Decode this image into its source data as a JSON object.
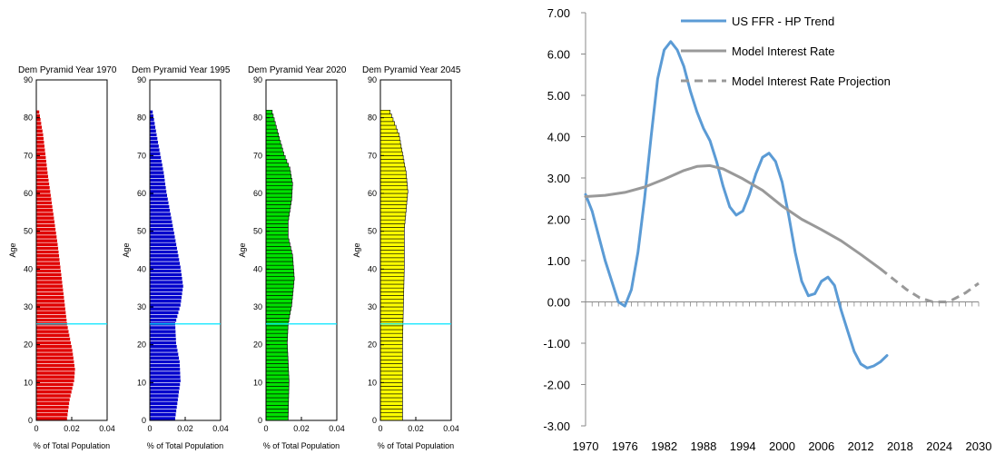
{
  "chart_data": [
    {
      "type": "bar",
      "orientation": "horizontal",
      "title": "Dem Pyramid Year 1970",
      "xlabel": "% of Total Population",
      "ylabel": "Age",
      "xlim": [
        0,
        0.04
      ],
      "ylim": [
        0,
        90
      ],
      "xticks": [
        "0",
        "0.02",
        "0.04"
      ],
      "yticks": [
        "0",
        "10",
        "20",
        "30",
        "40",
        "50",
        "60",
        "70",
        "80",
        "90"
      ],
      "color": "#e00000",
      "edge": "#ffffff",
      "marker_age": 25.5,
      "marker_color": "#00e5ff",
      "ages": [
        0,
        81
      ],
      "profile": [
        [
          0,
          0.0175
        ],
        [
          5,
          0.019
        ],
        [
          10,
          0.0215
        ],
        [
          13,
          0.022
        ],
        [
          18,
          0.0205
        ],
        [
          25,
          0.0175
        ],
        [
          35,
          0.015
        ],
        [
          45,
          0.0125
        ],
        [
          55,
          0.0095
        ],
        [
          65,
          0.0065
        ],
        [
          75,
          0.004
        ],
        [
          81,
          0.0018
        ]
      ]
    },
    {
      "type": "bar",
      "orientation": "horizontal",
      "title": "Dem Pyramid Year 1995",
      "xlabel": "% of Total Population",
      "ylabel": "Age",
      "xlim": [
        0,
        0.04
      ],
      "ylim": [
        0,
        90
      ],
      "xticks": [
        "0",
        "0.02",
        "0.04"
      ],
      "yticks": [
        "0",
        "10",
        "20",
        "30",
        "40",
        "50",
        "60",
        "70",
        "80",
        "90"
      ],
      "color": "#0000cc",
      "edge": "#ffffff",
      "marker_age": 25.5,
      "marker_color": "#00e5ff",
      "ages": [
        0,
        81
      ],
      "profile": [
        [
          0,
          0.0145
        ],
        [
          5,
          0.016
        ],
        [
          10,
          0.0175
        ],
        [
          15,
          0.017
        ],
        [
          20,
          0.015
        ],
        [
          25,
          0.0145
        ],
        [
          30,
          0.0175
        ],
        [
          35,
          0.019
        ],
        [
          40,
          0.0175
        ],
        [
          45,
          0.0155
        ],
        [
          50,
          0.0135
        ],
        [
          55,
          0.0115
        ],
        [
          60,
          0.0095
        ],
        [
          65,
          0.008
        ],
        [
          70,
          0.006
        ],
        [
          75,
          0.004
        ],
        [
          81,
          0.0018
        ]
      ]
    },
    {
      "type": "bar",
      "orientation": "horizontal",
      "title": "Dem Pyramid Year 2020",
      "xlabel": "% of Total Population",
      "ylabel": "Age",
      "xlim": [
        0,
        0.04
      ],
      "ylim": [
        0,
        90
      ],
      "xticks": [
        "0",
        "0.02",
        "0.04"
      ],
      "yticks": [
        "0",
        "10",
        "20",
        "30",
        "40",
        "50",
        "60",
        "70",
        "80",
        "90"
      ],
      "color": "#00e000",
      "edge": "#000000",
      "marker_age": 25.5,
      "marker_color": "#00e5ff",
      "ages": [
        0,
        81
      ],
      "profile": [
        [
          0,
          0.0125
        ],
        [
          10,
          0.013
        ],
        [
          20,
          0.012
        ],
        [
          25,
          0.0125
        ],
        [
          30,
          0.0145
        ],
        [
          37,
          0.016
        ],
        [
          43,
          0.015
        ],
        [
          48,
          0.0125
        ],
        [
          52,
          0.0125
        ],
        [
          58,
          0.0145
        ],
        [
          62,
          0.015
        ],
        [
          66,
          0.0135
        ],
        [
          70,
          0.01
        ],
        [
          75,
          0.007
        ],
        [
          81,
          0.0035
        ]
      ]
    },
    {
      "type": "bar",
      "orientation": "horizontal",
      "title": "Dem Pyramid Year 2045",
      "xlabel": "% of Total Population",
      "ylabel": "Age",
      "xlim": [
        0,
        0.04
      ],
      "ylim": [
        0,
        90
      ],
      "xticks": [
        "0",
        "0.02",
        "0.04"
      ],
      "yticks": [
        "0",
        "10",
        "20",
        "30",
        "40",
        "50",
        "60",
        "70",
        "80",
        "90"
      ],
      "color": "#ffff00",
      "edge": "#000000",
      "marker_age": 25.5,
      "marker_color": "#00e5ff",
      "ages": [
        0,
        81
      ],
      "profile": [
        [
          0,
          0.0125
        ],
        [
          20,
          0.0125
        ],
        [
          30,
          0.013
        ],
        [
          40,
          0.0135
        ],
        [
          50,
          0.0135
        ],
        [
          55,
          0.0145
        ],
        [
          60,
          0.0155
        ],
        [
          65,
          0.0145
        ],
        [
          70,
          0.0125
        ],
        [
          75,
          0.0105
        ],
        [
          81,
          0.0055
        ]
      ]
    },
    {
      "type": "line",
      "xlim": [
        1970,
        2030
      ],
      "ylim": [
        -3,
        7
      ],
      "xticks": [
        "1970",
        "1976",
        "1982",
        "1988",
        "1994",
        "2000",
        "2006",
        "2012",
        "2018",
        "2024",
        "2030"
      ],
      "yticks": [
        "-3.00",
        "-2.00",
        "-1.00",
        "0.00",
        "1.00",
        "2.00",
        "3.00",
        "4.00",
        "5.00",
        "6.00",
        "7.00"
      ],
      "legend": "top-right",
      "series": [
        {
          "name": "US FFR - HP Trend",
          "color": "#5b9bd5",
          "style": "solid",
          "points": [
            [
              1970,
              2.6
            ],
            [
              1971,
              2.2
            ],
            [
              1972,
              1.6
            ],
            [
              1973,
              1.0
            ],
            [
              1974,
              0.5
            ],
            [
              1975,
              0.0
            ],
            [
              1976,
              -0.1
            ],
            [
              1977,
              0.3
            ],
            [
              1978,
              1.2
            ],
            [
              1979,
              2.5
            ],
            [
              1980,
              4.0
            ],
            [
              1981,
              5.4
            ],
            [
              1982,
              6.1
            ],
            [
              1983,
              6.3
            ],
            [
              1984,
              6.1
            ],
            [
              1985,
              5.7
            ],
            [
              1986,
              5.1
            ],
            [
              1987,
              4.6
            ],
            [
              1988,
              4.2
            ],
            [
              1989,
              3.9
            ],
            [
              1990,
              3.4
            ],
            [
              1991,
              2.8
            ],
            [
              1992,
              2.3
            ],
            [
              1993,
              2.1
            ],
            [
              1994,
              2.2
            ],
            [
              1995,
              2.6
            ],
            [
              1996,
              3.1
            ],
            [
              1997,
              3.5
            ],
            [
              1998,
              3.6
            ],
            [
              1999,
              3.4
            ],
            [
              2000,
              2.9
            ],
            [
              2001,
              2.1
            ],
            [
              2002,
              1.2
            ],
            [
              2003,
              0.5
            ],
            [
              2004,
              0.15
            ],
            [
              2005,
              0.2
            ],
            [
              2006,
              0.5
            ],
            [
              2007,
              0.6
            ],
            [
              2008,
              0.4
            ],
            [
              2009,
              -0.2
            ],
            [
              2010,
              -0.7
            ],
            [
              2011,
              -1.2
            ],
            [
              2012,
              -1.5
            ],
            [
              2013,
              -1.6
            ],
            [
              2014,
              -1.55
            ],
            [
              2015,
              -1.45
            ],
            [
              2016,
              -1.3
            ]
          ]
        },
        {
          "name": "Model Interest Rate",
          "color": "#999999",
          "style": "solid",
          "points": [
            [
              1970,
              2.55
            ],
            [
              1973,
              2.58
            ],
            [
              1976,
              2.65
            ],
            [
              1979,
              2.78
            ],
            [
              1982,
              2.97
            ],
            [
              1985,
              3.18
            ],
            [
              1987,
              3.28
            ],
            [
              1989,
              3.3
            ],
            [
              1991,
              3.22
            ],
            [
              1994,
              2.98
            ],
            [
              1997,
              2.7
            ],
            [
              2000,
              2.32
            ],
            [
              2003,
              2.0
            ],
            [
              2006,
              1.75
            ],
            [
              2009,
              1.48
            ],
            [
              2012,
              1.15
            ],
            [
              2015,
              0.8
            ]
          ]
        },
        {
          "name": "Model Interest Rate Projection",
          "color": "#999999",
          "style": "dashed",
          "points": [
            [
              2015,
              0.8
            ],
            [
              2017,
              0.55
            ],
            [
              2019,
              0.3
            ],
            [
              2021,
              0.1
            ],
            [
              2023,
              0.0
            ],
            [
              2025,
              0.0
            ],
            [
              2026,
              0.05
            ],
            [
              2028,
              0.22
            ],
            [
              2030,
              0.45
            ]
          ]
        }
      ]
    }
  ]
}
